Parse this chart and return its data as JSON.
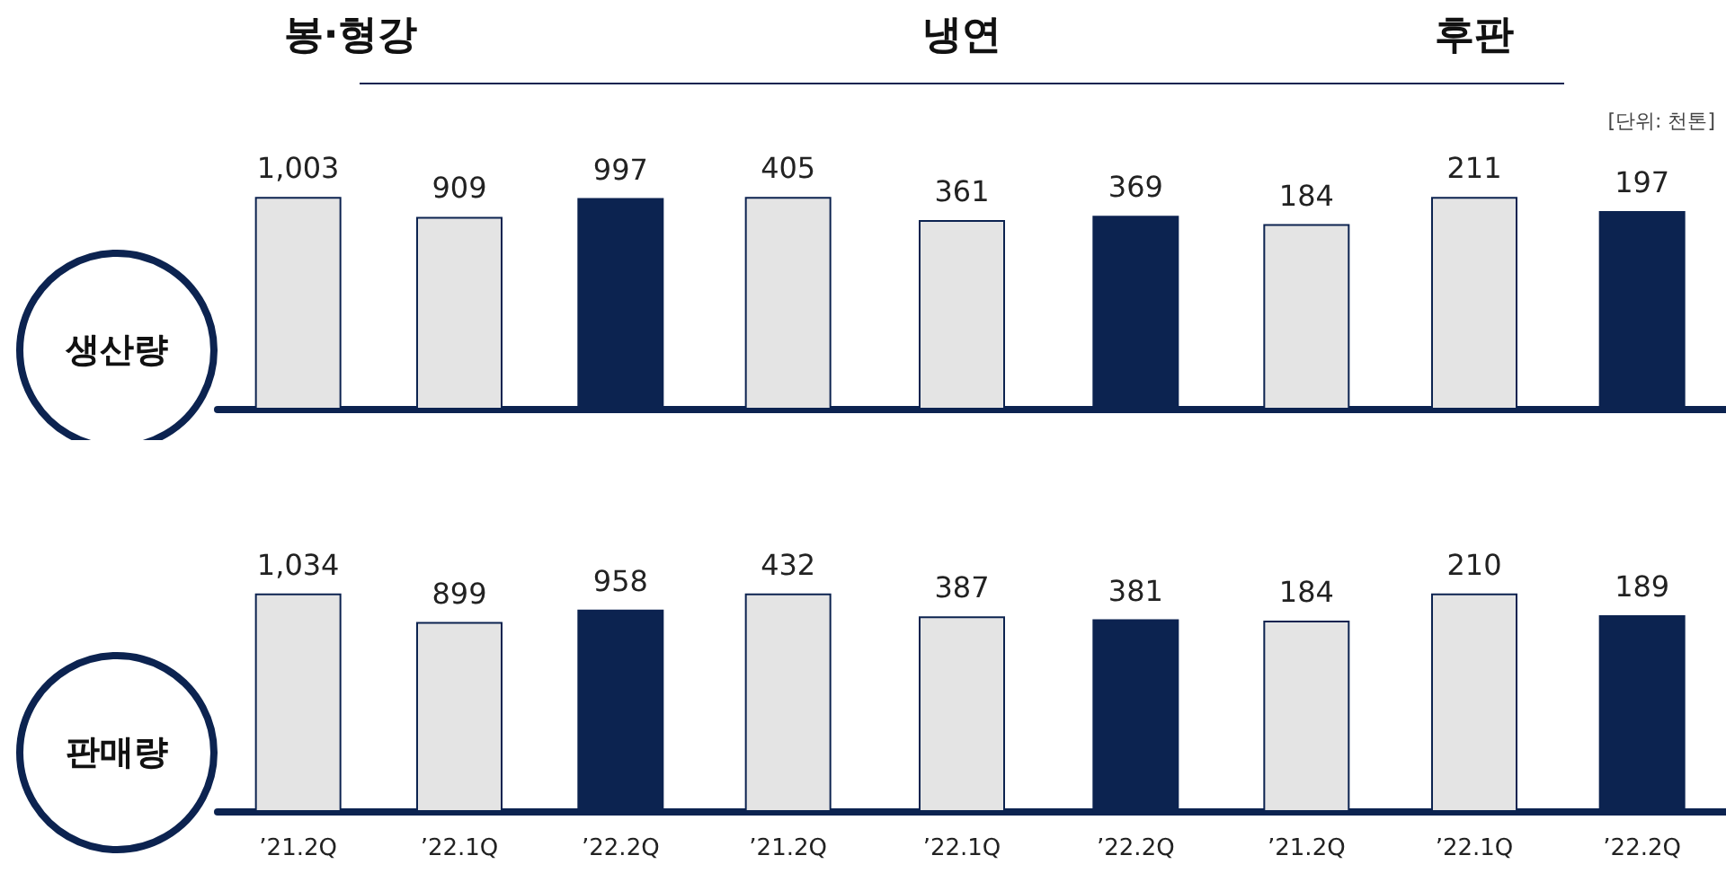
{
  "chart_data": [
    {
      "type": "bar",
      "title": "봉·형강",
      "ylabel": "생산량",
      "categories": [
        null,
        null,
        null
      ],
      "values": [
        1003,
        909,
        997
      ],
      "colors": [
        "#e4e4e4",
        "#e4e4e4",
        "#0c2350"
      ],
      "value_labels": [
        "1,003",
        "909",
        "997"
      ]
    },
    {
      "type": "bar",
      "title": "냉연",
      "categories": [
        null,
        null,
        null
      ],
      "values": [
        405,
        361,
        369
      ],
      "colors": [
        "#e4e4e4",
        "#e4e4e4",
        "#0c2350"
      ],
      "value_labels": [
        "405",
        "361",
        "369"
      ]
    },
    {
      "type": "bar",
      "title": "후판",
      "annotations": [
        "[단위: 천톤]"
      ],
      "categories": [
        null,
        null,
        null
      ],
      "values": [
        184,
        211,
        197
      ],
      "colors": [
        "#e4e4e4",
        "#e4e4e4",
        "#0c2350"
      ],
      "value_labels": [
        "184",
        "211",
        "197"
      ]
    },
    {
      "type": "bar",
      "ylabel": "판매량",
      "categories": [
        "’21.2Q",
        "’22.1Q",
        "’22.2Q"
      ],
      "values": [
        1034,
        899,
        958
      ],
      "colors": [
        "#e4e4e4",
        "#e4e4e4",
        "#0c2350"
      ],
      "value_labels": [
        "1,034",
        "899",
        "958"
      ]
    },
    {
      "type": "bar",
      "categories": [
        "’21.2Q",
        "’22.1Q",
        "’22.2Q"
      ],
      "values": [
        432,
        387,
        381
      ],
      "colors": [
        "#e4e4e4",
        "#e4e4e4",
        "#0c2350"
      ],
      "value_labels": [
        "432",
        "387",
        "381"
      ]
    },
    {
      "type": "bar",
      "categories": [
        "’21.2Q",
        "’22.1Q",
        "’22.2Q"
      ],
      "values": [
        184,
        210,
        189
      ],
      "colors": [
        "#e4e4e4",
        "#e4e4e4",
        "#0c2350"
      ],
      "value_labels": [
        "184",
        "210",
        "189"
      ]
    }
  ]
}
